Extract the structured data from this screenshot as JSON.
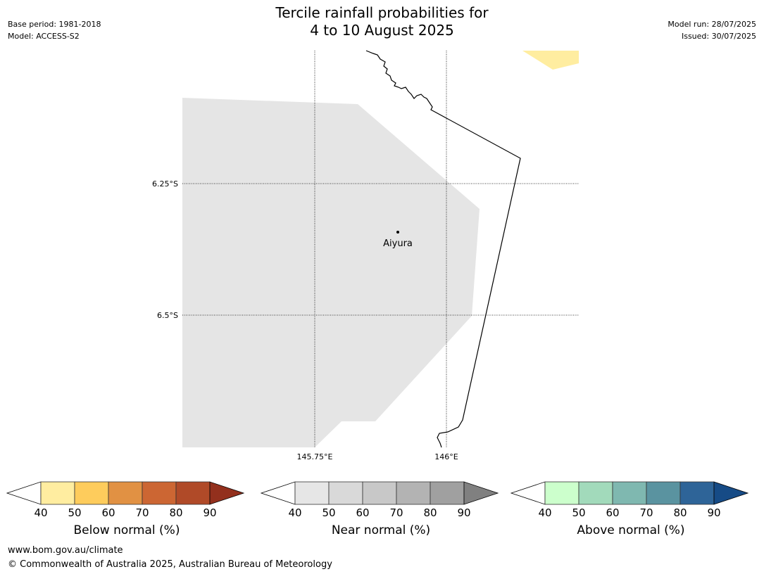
{
  "header": {
    "title_line1": "Tercile rainfall probabilities for",
    "title_line2": "4 to 10 August 2025",
    "base_period": "Base period: 1981-2018",
    "model": "Model: ACCESS-S2",
    "model_run": "Model run: 28/07/2025",
    "issued": "Issued: 30/07/2025"
  },
  "map": {
    "lat_labels": [
      "6.25°S",
      "6.5°S"
    ],
    "lon_labels": [
      "145.75°E",
      "146°E"
    ],
    "place": "Aiyura",
    "colors": {
      "near_normal_fill": "#e5e5e5",
      "below_normal_40_fill": "#ffeda0",
      "coast": "#000000"
    }
  },
  "legends": [
    {
      "label": "Below normal (%)",
      "ticks": [
        "40",
        "50",
        "60",
        "70",
        "80",
        "90"
      ],
      "colors": [
        "#ffeda0",
        "#fecc5c",
        "#e19143",
        "#cc6633",
        "#b04a28",
        "#93301d"
      ]
    },
    {
      "label": "Near normal (%)",
      "ticks": [
        "40",
        "50",
        "60",
        "70",
        "80",
        "90"
      ],
      "colors": [
        "#e6e6e6",
        "#d9d9d9",
        "#c8c8c8",
        "#b3b3b3",
        "#a0a0a0",
        "#808080"
      ]
    },
    {
      "label": "Above normal (%)",
      "ticks": [
        "40",
        "50",
        "60",
        "70",
        "80",
        "90"
      ],
      "colors": [
        "#ccffcc",
        "#a2dabb",
        "#7fb8b0",
        "#5a93a0",
        "#2e6498",
        "#164b86"
      ]
    }
  ],
  "footer": {
    "url": "www.bom.gov.au/climate",
    "copyright": "© Commonwealth of Australia 2025, Australian Bureau of Meteorology"
  }
}
